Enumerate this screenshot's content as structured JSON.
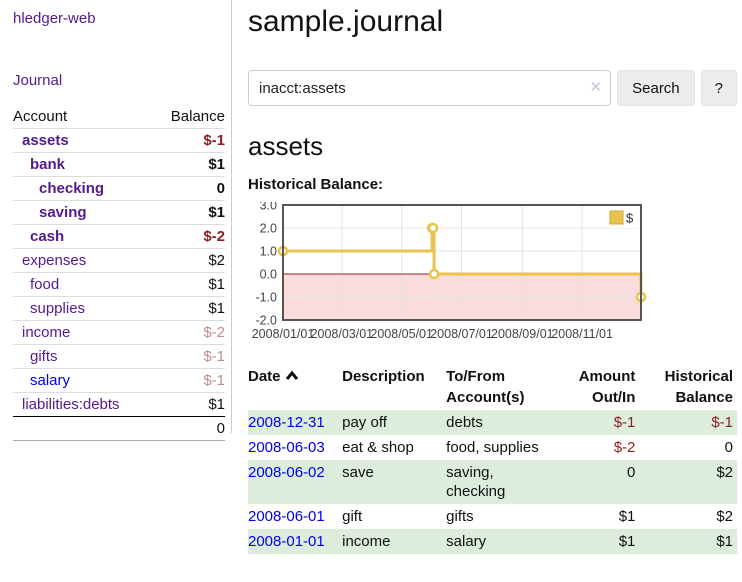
{
  "app": {
    "brand": "hledger-web",
    "journal_link": "Journal"
  },
  "sidebar": {
    "header": {
      "account": "Account",
      "balance": "Balance"
    },
    "accounts": [
      {
        "name": "assets",
        "indent": 1,
        "bold": true,
        "balance": "$-1",
        "negative": true,
        "dim": false,
        "unvisited": false
      },
      {
        "name": "bank",
        "indent": 2,
        "bold": true,
        "balance": "$1",
        "negative": false,
        "dim": false,
        "unvisited": false
      },
      {
        "name": "checking",
        "indent": 3,
        "bold": true,
        "balance": "0",
        "negative": false,
        "dim": false,
        "unvisited": false
      },
      {
        "name": "saving",
        "indent": 3,
        "bold": true,
        "balance": "$1",
        "negative": false,
        "dim": false,
        "unvisited": false
      },
      {
        "name": "cash",
        "indent": 2,
        "bold": true,
        "balance": "$-2",
        "negative": true,
        "dim": false,
        "unvisited": false
      },
      {
        "name": "expenses",
        "indent": 1,
        "bold": false,
        "balance": "$2",
        "negative": false,
        "dim": false,
        "unvisited": false
      },
      {
        "name": "food",
        "indent": 2,
        "bold": false,
        "balance": "$1",
        "negative": false,
        "dim": false,
        "unvisited": false
      },
      {
        "name": "supplies",
        "indent": 2,
        "bold": false,
        "balance": "$1",
        "negative": false,
        "dim": false,
        "unvisited": false
      },
      {
        "name": "income",
        "indent": 1,
        "bold": false,
        "balance": "$-2",
        "negative": true,
        "dim": true,
        "unvisited": false
      },
      {
        "name": "gifts",
        "indent": 2,
        "bold": false,
        "balance": "$-1",
        "negative": true,
        "dim": true,
        "unvisited": false
      },
      {
        "name": "salary",
        "indent": 2,
        "bold": false,
        "balance": "$-1",
        "negative": true,
        "dim": true,
        "unvisited": true
      },
      {
        "name": "liabilities:debts",
        "indent": 1,
        "bold": false,
        "balance": "$1",
        "negative": false,
        "dim": false,
        "unvisited": false
      }
    ],
    "total": "0"
  },
  "header": {
    "title": "sample.journal"
  },
  "search": {
    "value": "inacct:assets",
    "clear_icon": "✕",
    "button": "Search",
    "help_button": "?"
  },
  "account_page": {
    "heading": "assets",
    "chart_label": "Historical Balance:"
  },
  "chart_data": {
    "type": "line",
    "step": true,
    "series": [
      {
        "name": "$",
        "color": "#E9C34B",
        "points": [
          [
            "2008-01-01",
            1
          ],
          [
            "2008-06-01",
            2
          ],
          [
            "2008-06-02",
            2
          ],
          [
            "2008-06-03",
            0
          ],
          [
            "2008-12-31",
            -1
          ]
        ]
      }
    ],
    "x_range": [
      "2008-01-01",
      "2008-12-31"
    ],
    "ylim": [
      -2,
      3
    ],
    "yticks": [
      3.0,
      2.0,
      1.0,
      0.0,
      -1.0,
      -2.0
    ],
    "xticks": [
      "2008/01/01",
      "2008/03/01",
      "2008/05/01",
      "2008/07/01",
      "2008/09/01",
      "2008/11/01"
    ],
    "grid": true,
    "legend_position": "top-right",
    "negative_region_color": "#FADCDC",
    "zero_line_color": "#8B2020"
  },
  "register": {
    "columns": [
      {
        "line1": "Date",
        "line2": ""
      },
      {
        "line1": "Description",
        "line2": ""
      },
      {
        "line1": "To/From",
        "line2": "Account(s)"
      },
      {
        "line1": "Amount",
        "line2": "Out/In"
      },
      {
        "line1": "Historical",
        "line2": "Balance"
      }
    ],
    "rows": [
      {
        "date": "2008-12-31",
        "description": "pay off",
        "accounts": "debts",
        "amount": "$-1",
        "amount_negative": true,
        "balance": "$-1",
        "balance_negative": true
      },
      {
        "date": "2008-06-03",
        "description": "eat & shop",
        "accounts": "food, supplies",
        "amount": "$-2",
        "amount_negative": true,
        "balance": "0",
        "balance_negative": false
      },
      {
        "date": "2008-06-02",
        "description": "save",
        "accounts": "saving, checking",
        "amount": "0",
        "amount_negative": false,
        "balance": "$2",
        "balance_negative": false
      },
      {
        "date": "2008-06-01",
        "description": "gift",
        "accounts": "gifts",
        "amount": "$1",
        "amount_negative": false,
        "balance": "$2",
        "balance_negative": false
      },
      {
        "date": "2008-01-01",
        "description": "income",
        "accounts": "salary",
        "amount": "$1",
        "amount_negative": false,
        "balance": "$1",
        "balance_negative": false
      }
    ]
  }
}
